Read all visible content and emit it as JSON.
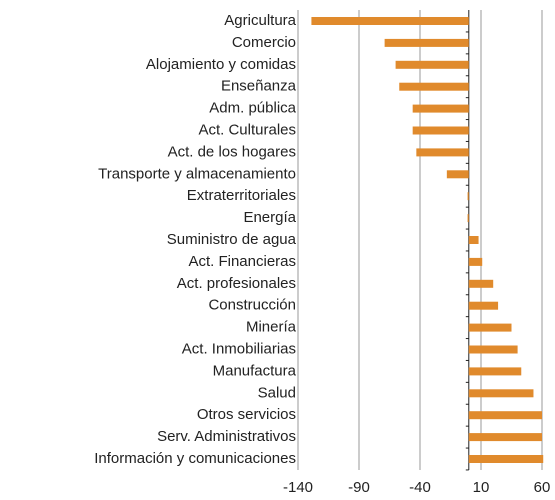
{
  "chart_data": {
    "type": "barh",
    "categories": [
      "Agricultura",
      "Comercio",
      "Alojamiento y comidas",
      "Enseñanza",
      "Adm. pública",
      "Act. Culturales",
      "Act. de los hogares",
      "Transporte y almacenamiento",
      "Extraterritoriales",
      "Energía",
      "Suministro de agua",
      "Act. Financieras",
      "Act. profesionales",
      "Construcción",
      "Minería",
      "Act. Inmobiliarias",
      "Manufactura",
      "Salud",
      "Otros servicios",
      "Serv. Administrativos",
      "Información y comunicaciones"
    ],
    "values": [
      -129,
      -69,
      -60,
      -57,
      -46,
      -46,
      -43,
      -18,
      -1,
      -1,
      8,
      11,
      20,
      24,
      35,
      40,
      43,
      53,
      60,
      60,
      61
    ],
    "color": "#e08a2c",
    "xlim": [
      -140,
      60
    ],
    "xticks": [
      -140,
      -90,
      -40,
      10,
      60
    ],
    "grid": true
  }
}
